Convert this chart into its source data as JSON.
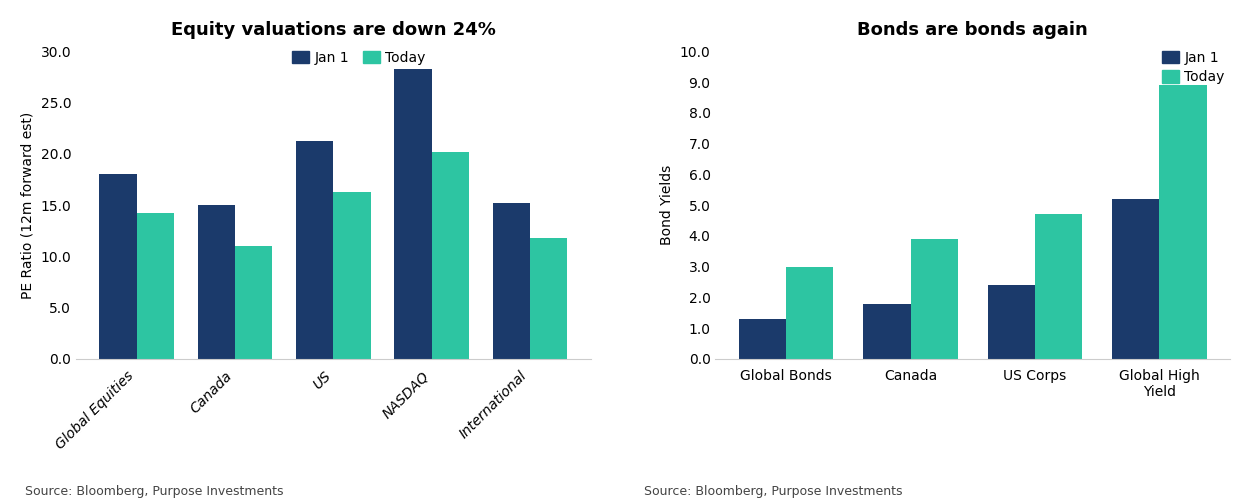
{
  "left_chart": {
    "title": "Equity valuations are down 24%",
    "ylabel": "PE Ratio (12m forward est)",
    "categories": [
      "Global Equities",
      "Canada",
      "US",
      "NASDAQ",
      "International"
    ],
    "jan1": [
      18.0,
      15.0,
      21.3,
      28.3,
      15.2
    ],
    "today": [
      14.2,
      11.0,
      16.3,
      20.2,
      11.8
    ],
    "ylim": [
      0,
      30.0
    ],
    "yticks": [
      0.0,
      5.0,
      10.0,
      15.0,
      20.0,
      25.0,
      30.0
    ],
    "source": "Source: Bloomberg, Purpose Investments"
  },
  "right_chart": {
    "title": "Bonds are bonds again",
    "ylabel": "Bond Yields",
    "categories": [
      "Global Bonds",
      "Canada",
      "US Corps",
      "Global High\nYield"
    ],
    "jan1": [
      1.3,
      1.8,
      2.4,
      5.2
    ],
    "today": [
      3.0,
      3.9,
      4.7,
      8.9
    ],
    "ylim": [
      0,
      10.0
    ],
    "yticks": [
      0.0,
      1.0,
      2.0,
      3.0,
      4.0,
      5.0,
      6.0,
      7.0,
      8.0,
      9.0,
      10.0
    ],
    "source": "Source: Bloomberg, Purpose Investments"
  },
  "color_jan1": "#1B3A6B",
  "color_today": "#2DC5A2",
  "legend_labels": [
    "Jan 1",
    "Today"
  ],
  "background_color": "#FFFFFF",
  "title_fontsize": 13,
  "label_fontsize": 10,
  "tick_fontsize": 10,
  "source_fontsize": 9,
  "bar_width": 0.38
}
